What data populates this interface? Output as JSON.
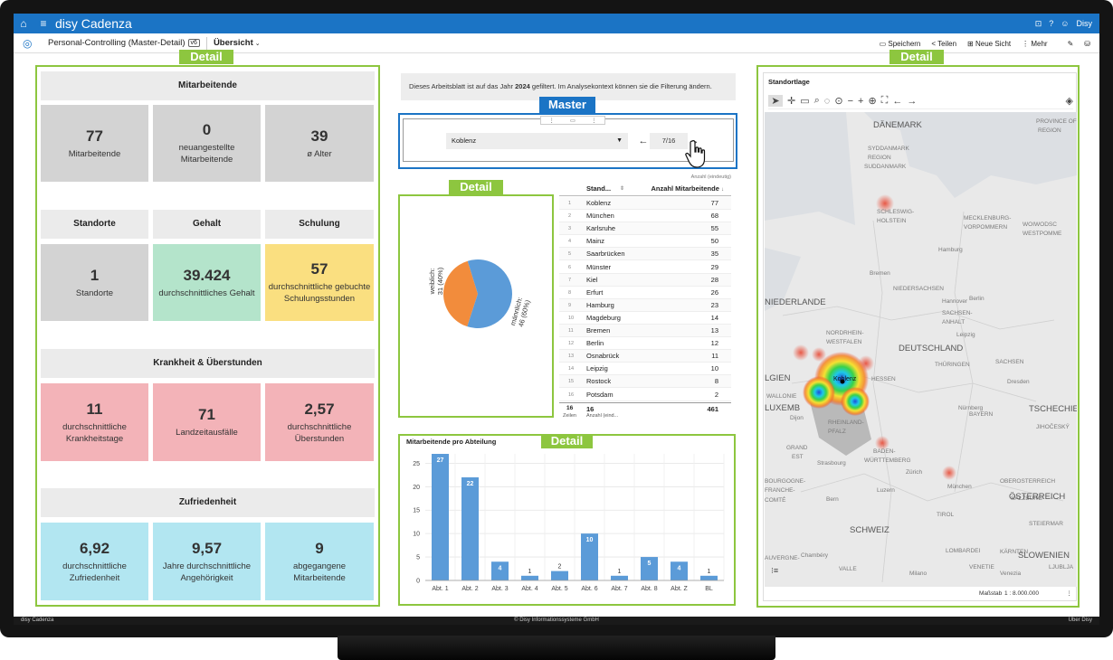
{
  "app": {
    "title": "disy Cadenza",
    "user": "Disy"
  },
  "toolbar": {
    "sheet": "Personal-Controlling (Master-Detail)",
    "version": "v6",
    "view": "Übersicht",
    "save": "Speichern",
    "share": "Teilen",
    "new_view": "Neue Sicht",
    "more": "Mehr"
  },
  "tags": {
    "detail": "Detail",
    "master": "Master"
  },
  "notice": {
    "pre": "Dieses Arbeitsblatt ist auf das Jahr ",
    "year": "2024",
    "post": " gefiltert. Im Analysekontext können sie die Filterung ändern."
  },
  "kpi": {
    "mitarbeitende": {
      "head": "Mitarbeitende",
      "tiles": [
        {
          "value": "77",
          "label": "Mitarbeitende"
        },
        {
          "value": "0",
          "label": "neuangestellte Mitarbeitende"
        },
        {
          "value": "39",
          "label": "ø Alter"
        }
      ]
    },
    "row2": {
      "heads": [
        "Standorte",
        "Gehalt",
        "Schulung"
      ],
      "tiles": [
        {
          "value": "1",
          "label": "Standorte"
        },
        {
          "value": "39.424",
          "label": "durchschnittliches Gehalt"
        },
        {
          "value": "57",
          "label": "durchschnittliche gebuchte Schulungsstunden"
        }
      ]
    },
    "krankheit": {
      "head": "Krankheit & Überstunden",
      "tiles": [
        {
          "value": "11",
          "label": "durchschnittliche Krankheitstage"
        },
        {
          "value": "71",
          "label": "Landzeitausfälle"
        },
        {
          "value": "2,57",
          "label": "durchschnittliche Überstunden"
        }
      ]
    },
    "zufrieden": {
      "head": "Zufriedenheit",
      "tiles": [
        {
          "value": "6,92",
          "label": "durchschnittliche Zufriedenheit"
        },
        {
          "value": "9,57",
          "label": "Jahre durchschnittliche Angehörigkeit"
        },
        {
          "value": "9",
          "label": "abgegangene Mitarbeitende"
        }
      ]
    }
  },
  "master": {
    "selected": "Koblenz",
    "page": "7/16"
  },
  "pie": {
    "slices": [
      {
        "label": "weiblich:",
        "value_text": "31 (40%)",
        "value": 31,
        "color": "#f28c3c"
      },
      {
        "label": "männlich:",
        "value_text": "46 (60%)",
        "value": 46,
        "color": "#5b9bd8"
      }
    ]
  },
  "table": {
    "caption": "Anzahl (eindeutig)",
    "col1": "Stand...",
    "col2": "Anzahl Mitarbeitende",
    "rows": [
      {
        "n": "1",
        "s": "Koblenz",
        "a": "77"
      },
      {
        "n": "2",
        "s": "München",
        "a": "68"
      },
      {
        "n": "3",
        "s": "Karlsruhe",
        "a": "55"
      },
      {
        "n": "4",
        "s": "Mainz",
        "a": "50"
      },
      {
        "n": "5",
        "s": "Saarbrücken",
        "a": "35"
      },
      {
        "n": "6",
        "s": "Münster",
        "a": "29"
      },
      {
        "n": "7",
        "s": "Kiel",
        "a": "28"
      },
      {
        "n": "8",
        "s": "Erfurt",
        "a": "26"
      },
      {
        "n": "9",
        "s": "Hamburg",
        "a": "23"
      },
      {
        "n": "10",
        "s": "Magdeburg",
        "a": "14"
      },
      {
        "n": "11",
        "s": "Bremen",
        "a": "13"
      },
      {
        "n": "12",
        "s": "Berlin",
        "a": "12"
      },
      {
        "n": "13",
        "s": "Osnabrück",
        "a": "11"
      },
      {
        "n": "14",
        "s": "Leipzig",
        "a": "10"
      },
      {
        "n": "15",
        "s": "Rostock",
        "a": "8"
      },
      {
        "n": "16",
        "s": "Potsdam",
        "a": "2"
      }
    ],
    "foot": {
      "n": "16",
      "s": "16",
      "a": "461",
      "rows_label": "Zeilen",
      "col_label": "Anzahl (eind..."
    }
  },
  "chart_data": {
    "type": "bar",
    "title": "Mitarbeitende pro Abteilung",
    "categories": [
      "Abt. 1",
      "Abt. 2",
      "Abt. 3",
      "Abt. 4",
      "Abt. 5",
      "Abt. 6",
      "Abt. 7",
      "Abt. 8",
      "Abt. Z",
      "BL"
    ],
    "values": [
      27,
      22,
      4,
      1,
      2,
      10,
      1,
      5,
      4,
      1
    ],
    "yticks": [
      0,
      5,
      10,
      15,
      20,
      25
    ],
    "ylim": [
      0,
      27
    ],
    "grid": true,
    "color": "#5b9bd8"
  },
  "map": {
    "title": "Standortlage",
    "scale_label": "Maßstab",
    "scale_value": "1 : 8.000.000",
    "labels": [
      {
        "t": "DÄNEMARK"
      },
      {
        "t": "PROVINCE OF"
      },
      {
        "t": "REGION"
      },
      {
        "t": "SYDDANMARK"
      },
      {
        "t": "REGION"
      },
      {
        "t": "SUDDANMARK"
      },
      {
        "t": "SCHLESWIG-"
      },
      {
        "t": "HOLSTEIN"
      },
      {
        "t": "MECKLENBURG-"
      },
      {
        "t": "VORPOMMERN"
      },
      {
        "t": "WOIWODSC"
      },
      {
        "t": "WESTPOMME"
      },
      {
        "t": "Hamburg"
      },
      {
        "t": "Bremen"
      },
      {
        "t": "NIEDERSACHSEN"
      },
      {
        "t": "Hannover"
      },
      {
        "t": "NIEDERLANDE"
      },
      {
        "t": "SACHSEN-"
      },
      {
        "t": "ANHALT"
      },
      {
        "t": "Berlin"
      },
      {
        "t": "NORDRHEIN-"
      },
      {
        "t": "WESTFALEN"
      },
      {
        "t": "DEUTSCHLAND"
      },
      {
        "t": "Leipzig"
      },
      {
        "t": "SACHSEN"
      },
      {
        "t": "Dresden"
      },
      {
        "t": "THÜRINGEN"
      },
      {
        "t": "Koblenz"
      },
      {
        "t": "HESSEN"
      },
      {
        "t": "LGIEN"
      },
      {
        "t": "WALLONIE"
      },
      {
        "t": "LUXEMB"
      },
      {
        "t": "RHEINLAND-"
      },
      {
        "t": "PFALZ"
      },
      {
        "t": "BAYERN"
      },
      {
        "t": "Nürnberg"
      },
      {
        "t": "TSCHECHIE"
      },
      {
        "t": "JIHOČESKÝ"
      },
      {
        "t": "GRAND"
      },
      {
        "t": "EST"
      },
      {
        "t": "Strasbourg"
      },
      {
        "t": "BADEN-"
      },
      {
        "t": "WÜRTTEMBERG"
      },
      {
        "t": "München"
      },
      {
        "t": "OBEROSTERREICH"
      },
      {
        "t": "SALZBURG"
      },
      {
        "t": "ÖSTERREICH"
      },
      {
        "t": "BOURGOGNE-"
      },
      {
        "t": "FRANCHE-"
      },
      {
        "t": "COMTÉ"
      },
      {
        "t": "SCHWEIZ"
      },
      {
        "t": "TIROL"
      },
      {
        "t": "STEIERMAR"
      },
      {
        "t": "KÄRNTEN"
      },
      {
        "t": "SLOWENIEN"
      },
      {
        "t": "LOMBARDEI"
      },
      {
        "t": "Chambéry"
      },
      {
        "t": "Milano"
      },
      {
        "t": "Venezia"
      },
      {
        "t": "AUVERGNE-"
      },
      {
        "t": "VALLE"
      },
      {
        "t": "VENETIE"
      },
      {
        "t": "LJUBLJA"
      },
      {
        "t": "Dijon"
      },
      {
        "t": "Bern"
      },
      {
        "t": "Luzern"
      },
      {
        "t": "Zürich"
      }
    ]
  }
}
